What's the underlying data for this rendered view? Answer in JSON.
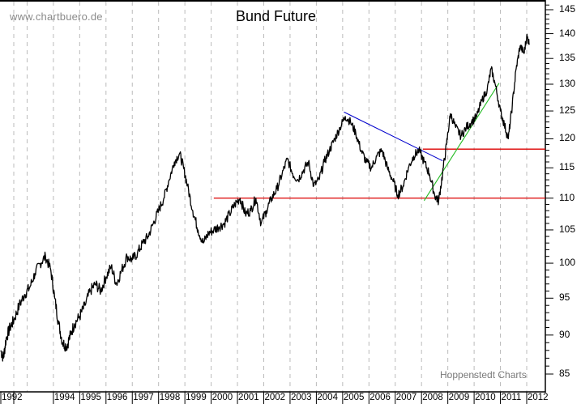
{
  "header": {
    "watermark": "www.chartbuero.de",
    "title": "Bund Future"
  },
  "footer": {
    "source": "Hoppenstedt Charts"
  },
  "colors": {
    "price_line": "#000000",
    "support_line": "#dd0000",
    "downtrend_line": "#0000cc",
    "uptrend_line": "#22bb22",
    "grid": "#bbbbbb"
  },
  "chart_data": {
    "type": "line",
    "title": "Bund Future",
    "xlabel": "",
    "ylabel": "",
    "y_scale": "log",
    "ylim": [
      84,
      146
    ],
    "xlim": [
      1992.0,
      2012.15
    ],
    "grid": "vertical dashed at each year",
    "y_axis_position": "right",
    "y_ticks": [
      145,
      140,
      135,
      130,
      125,
      120,
      115,
      110,
      105,
      100,
      95,
      90,
      85
    ],
    "x_tick_labels": [
      "1992",
      "1994",
      "1995",
      "1996",
      "1997",
      "1998",
      "1999",
      "2000",
      "2001",
      "2002",
      "2003",
      "2004",
      "2005",
      "2006",
      "2007",
      "2008",
      "2009",
      "2010",
      "2011",
      "2012"
    ],
    "series": [
      {
        "name": "Bund Future",
        "x": [
          1992.0,
          1992.1,
          1992.2,
          1992.35,
          1992.5,
          1992.7,
          1992.9,
          1993.1,
          1993.3,
          1993.5,
          1993.7,
          1993.9,
          1994.05,
          1994.2,
          1994.35,
          1994.5,
          1994.65,
          1994.8,
          1995.0,
          1995.2,
          1995.4,
          1995.6,
          1995.8,
          1996.0,
          1996.2,
          1996.4,
          1996.6,
          1996.8,
          1997.0,
          1997.2,
          1997.4,
          1997.6,
          1997.8,
          1998.0,
          1998.2,
          1998.4,
          1998.6,
          1998.8,
          1998.95,
          1999.1,
          1999.3,
          1999.5,
          1999.7,
          1999.9,
          2000.1,
          2000.3,
          2000.5,
          2000.7,
          2000.9,
          2001.1,
          2001.3,
          2001.5,
          2001.7,
          2001.9,
          2002.1,
          2002.3,
          2002.5,
          2002.7,
          2002.9,
          2003.1,
          2003.3,
          2003.5,
          2003.7,
          2003.9,
          2004.1,
          2004.3,
          2004.5,
          2004.7,
          2004.9,
          2005.1,
          2005.3,
          2005.5,
          2005.7,
          2005.9,
          2006.1,
          2006.3,
          2006.5,
          2006.7,
          2006.9,
          2007.1,
          2007.3,
          2007.5,
          2007.7,
          2007.9,
          2008.1,
          2008.3,
          2008.5,
          2008.65,
          2008.8,
          2008.95,
          2009.1,
          2009.3,
          2009.5,
          2009.7,
          2009.9,
          2010.1,
          2010.3,
          2010.5,
          2010.65,
          2010.8,
          2011.0,
          2011.15,
          2011.3,
          2011.45,
          2011.6,
          2011.75,
          2011.9,
          2012.0,
          2012.1
        ],
        "values": [
          88,
          87,
          89.5,
          91,
          92,
          94,
          95.5,
          96.5,
          98.5,
          100,
          101,
          99,
          95,
          91.5,
          89,
          88.5,
          90,
          91.5,
          92.5,
          94,
          96,
          97,
          96,
          98,
          99.5,
          97,
          99,
          101,
          100.5,
          101.5,
          103,
          104,
          106,
          108,
          110,
          113,
          116,
          117.5,
          115,
          112,
          108,
          105,
          103,
          104.5,
          105,
          105.5,
          106,
          107.5,
          109,
          110,
          107.5,
          108,
          110,
          106,
          108,
          110,
          111.5,
          114,
          116.5,
          114,
          113,
          114.5,
          116,
          112,
          113,
          116,
          118,
          120,
          122,
          124,
          123,
          121,
          118,
          116,
          115,
          117,
          118,
          115,
          113,
          110.5,
          112,
          115,
          117,
          118,
          116,
          114,
          110.5,
          109.5,
          114,
          119,
          124.5,
          122,
          120.5,
          122,
          123,
          124,
          127,
          129,
          133,
          130,
          125,
          122.5,
          120,
          126,
          133,
          137.5,
          136,
          139.5,
          138
        ]
      }
    ],
    "annotations": [
      {
        "type": "hline",
        "label": "support",
        "color": "#dd0000",
        "y": 110,
        "x_from": 2000.1,
        "x_to": 2012.3
      },
      {
        "type": "hline",
        "label": "resistance",
        "color": "#dd0000",
        "y": 118.2,
        "x_from": 2008.05,
        "x_to": 2012.3
      },
      {
        "type": "trendline",
        "label": "downtrend",
        "color": "#0000cc",
        "from": [
          2005.05,
          124.8
        ],
        "to": [
          2008.8,
          116.2
        ]
      },
      {
        "type": "trendline",
        "label": "uptrend",
        "color": "#22bb22",
        "from": [
          2008.1,
          109.6
        ],
        "to": [
          2010.95,
          130.2
        ]
      }
    ],
    "legend": "none"
  }
}
